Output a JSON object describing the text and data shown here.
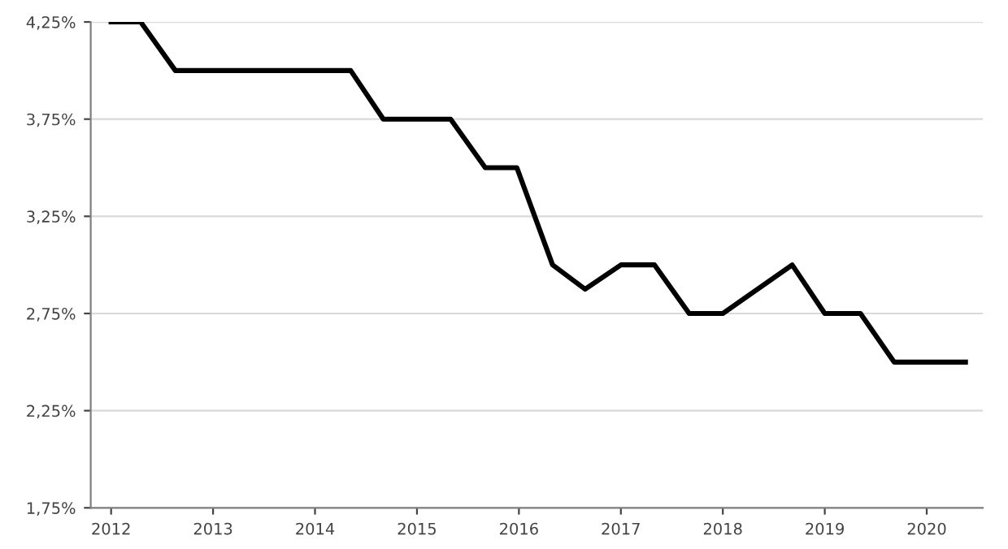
{
  "chart_data": {
    "type": "line",
    "x": [
      2012.0,
      2012.29,
      2012.63,
      2014.35,
      2014.67,
      2015.33,
      2015.67,
      2015.98,
      2016.33,
      2016.65,
      2017.0,
      2017.33,
      2017.67,
      2018.0,
      2018.68,
      2019.0,
      2019.35,
      2019.68,
      2020.38
    ],
    "series": [
      {
        "color": "#000000",
        "values": [
          4.25,
          4.25,
          4.0,
          4.0,
          3.75,
          3.75,
          3.5,
          3.5,
          3.0,
          2.875,
          3.0,
          3.0,
          2.75,
          2.75,
          3.0,
          2.75,
          2.75,
          2.5,
          2.5
        ]
      }
    ],
    "xlim": [
      2011.8,
      2020.55
    ],
    "xticks": [
      2012,
      2013,
      2014,
      2015,
      2016,
      2017,
      2018,
      2019,
      2020
    ],
    "ylim": [
      1.75,
      4.25
    ],
    "yticks": [
      {
        "value": 1.75,
        "label": "1,75%"
      },
      {
        "value": 2.25,
        "label": "2,25%"
      },
      {
        "value": 2.75,
        "label": "2,75%"
      },
      {
        "value": 3.25,
        "label": "3,25%"
      },
      {
        "value": 3.75,
        "label": "3,75%"
      },
      {
        "value": 4.25,
        "label": "4,25%"
      }
    ],
    "grid": "y",
    "line_style": "solid",
    "marker": "none"
  }
}
